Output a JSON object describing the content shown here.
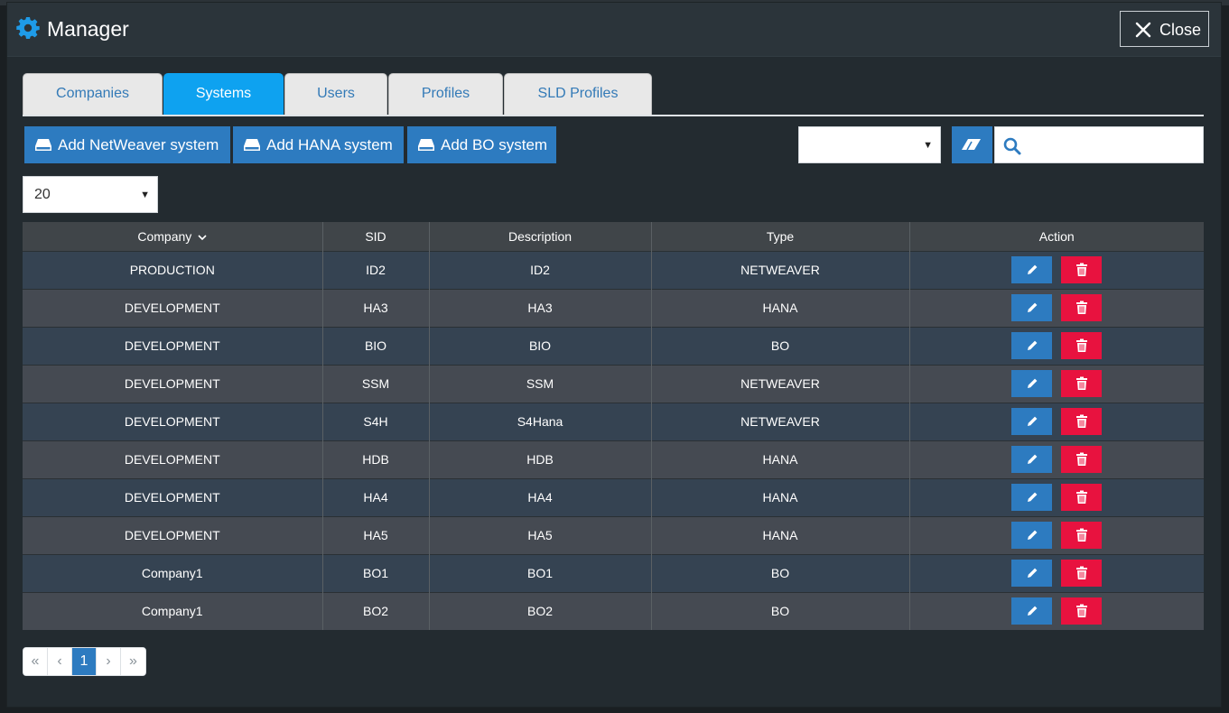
{
  "window": {
    "title": "Manager",
    "close_label": "Close"
  },
  "tabs": [
    {
      "label": "Companies",
      "active": false
    },
    {
      "label": "Systems",
      "active": true
    },
    {
      "label": "Users",
      "active": false
    },
    {
      "label": "Profiles",
      "active": false
    },
    {
      "label": "SLD Profiles",
      "active": false
    }
  ],
  "toolbar": {
    "add_netweaver": "Add NetWeaver system",
    "add_hana": "Add HANA system",
    "add_bo": "Add BO system",
    "filter_select_value": "",
    "search_placeholder": ""
  },
  "page_size": "20",
  "table": {
    "columns": [
      "Company",
      "SID",
      "Description",
      "Type",
      "Action"
    ],
    "sort_indicator": "chevron-down",
    "rows": [
      {
        "company": "PRODUCTION",
        "sid": "ID2",
        "description": "ID2",
        "type": "NETWEAVER"
      },
      {
        "company": "DEVELOPMENT",
        "sid": "HA3",
        "description": "HA3",
        "type": "HANA"
      },
      {
        "company": "DEVELOPMENT",
        "sid": "BIO",
        "description": "BIO",
        "type": "BO"
      },
      {
        "company": "DEVELOPMENT",
        "sid": "SSM",
        "description": "SSM",
        "type": "NETWEAVER"
      },
      {
        "company": "DEVELOPMENT",
        "sid": "S4H",
        "description": "S4Hana",
        "type": "NETWEAVER"
      },
      {
        "company": "DEVELOPMENT",
        "sid": "HDB",
        "description": "HDB",
        "type": "HANA"
      },
      {
        "company": "DEVELOPMENT",
        "sid": "HA4",
        "description": "HA4",
        "type": "HANA"
      },
      {
        "company": "DEVELOPMENT",
        "sid": "HA5",
        "description": "HA5",
        "type": "HANA"
      },
      {
        "company": "Company1",
        "sid": "BO1",
        "description": "BO1",
        "type": "BO"
      },
      {
        "company": "Company1",
        "sid": "BO2",
        "description": "BO2",
        "type": "BO"
      }
    ]
  },
  "pagination": {
    "first": "«",
    "prev": "‹",
    "current": "1",
    "next": "›",
    "last": "»"
  },
  "colors": {
    "accent": "#2d7bc0",
    "active_tab": "#0ea2f0",
    "danger": "#e8123f",
    "gear": "#1e9be8"
  }
}
